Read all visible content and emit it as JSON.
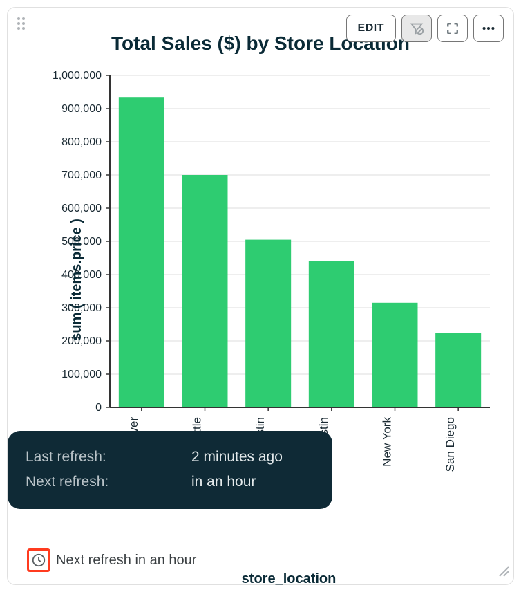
{
  "toolbar": {
    "edit_label": "EDIT"
  },
  "chart": {
    "type": "bar",
    "title": "Total Sales ($) by Store Location",
    "y_label": "sum ( items.price )",
    "x_label": "store_location",
    "categories": [
      "Denver",
      "Seattle",
      "Austin",
      "Austin",
      "New York",
      "San Diego"
    ],
    "values": [
      935000,
      700000,
      505000,
      440000,
      315000,
      225000
    ],
    "bar_color": "#2ecc71",
    "background_color": "#ffffff",
    "grid_color": "#dcdcdc",
    "axis_color": "#333333",
    "ylim": [
      0,
      1000000
    ],
    "ytick_step": 100000,
    "ytick_labels": [
      "0",
      "100,000",
      "200,000",
      "300,000",
      "400,000",
      "500,000",
      "600,000",
      "700,000",
      "800,000",
      "900,000",
      "1,000,000"
    ],
    "title_fontsize": 28,
    "label_fontsize": 20,
    "tick_fontsize": 16,
    "bar_width_ratio": 0.72,
    "text_color": "#0a2a36"
  },
  "tooltip": {
    "last_refresh_label": "Last refresh:",
    "last_refresh_value": "2 minutes ago",
    "next_refresh_label": "Next refresh:",
    "next_refresh_value": "in an hour",
    "bg_color": "#0f2a36",
    "text_color": "#cfd8dc"
  },
  "footer": {
    "status_text": "Next refresh in an hour",
    "highlight_color": "#ff3b1f"
  }
}
